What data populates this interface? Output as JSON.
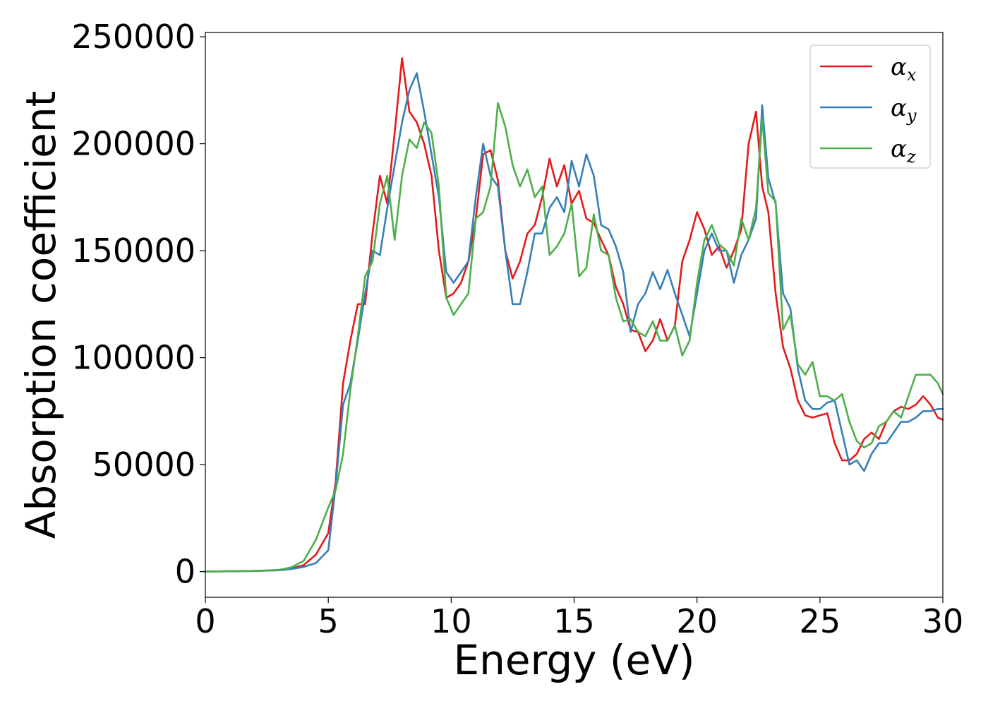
{
  "chart_data": {
    "type": "line",
    "title": "",
    "xlabel": "Energy (eV)",
    "ylabel": "Absorption coefficient",
    "xlim": [
      0,
      30
    ],
    "ylim": [
      -12000,
      252000
    ],
    "xticks": [
      0,
      5,
      10,
      15,
      20,
      25,
      30
    ],
    "yticks": [
      0,
      50000,
      100000,
      150000,
      200000,
      250000
    ],
    "grid": false,
    "legend_position": "top-right",
    "x": [
      0,
      2,
      3,
      3.5,
      4,
      4.5,
      5,
      5.3,
      5.6,
      5.9,
      6.2,
      6.5,
      6.8,
      7.1,
      7.4,
      7.7,
      8.0,
      8.3,
      8.6,
      8.9,
      9.2,
      9.5,
      9.8,
      10.1,
      10.4,
      10.7,
      11.0,
      11.3,
      11.6,
      11.9,
      12.2,
      12.5,
      12.8,
      13.1,
      13.4,
      13.7,
      14.0,
      14.3,
      14.6,
      14.9,
      15.2,
      15.5,
      15.8,
      16.1,
      16.4,
      16.7,
      17.0,
      17.3,
      17.6,
      17.9,
      18.2,
      18.5,
      18.8,
      19.1,
      19.4,
      19.7,
      20.0,
      20.3,
      20.6,
      20.9,
      21.2,
      21.5,
      21.8,
      22.1,
      22.4,
      22.65,
      22.9,
      23.2,
      23.5,
      23.8,
      24.1,
      24.4,
      24.7,
      25.0,
      25.3,
      25.6,
      25.9,
      26.2,
      26.5,
      26.8,
      27.1,
      27.4,
      27.7,
      28.0,
      28.3,
      28.6,
      28.9,
      29.2,
      29.5,
      29.8,
      30.0
    ],
    "series": [
      {
        "name": "αx",
        "color": "#e41a1c",
        "values": [
          0,
          300,
          700,
          1500,
          3000,
          8000,
          18000,
          42000,
          88000,
          108000,
          125000,
          125000,
          158000,
          185000,
          172000,
          205000,
          240000,
          215000,
          210000,
          200000,
          185000,
          150000,
          128000,
          130000,
          135000,
          145000,
          165000,
          195000,
          197000,
          183000,
          150000,
          137000,
          145000,
          158000,
          162000,
          175000,
          193000,
          180000,
          190000,
          172000,
          178000,
          165000,
          163000,
          155000,
          148000,
          133000,
          125000,
          113000,
          112000,
          103000,
          108000,
          118000,
          108000,
          115000,
          145000,
          155000,
          168000,
          160000,
          148000,
          152000,
          142000,
          150000,
          160000,
          200000,
          215000,
          180000,
          168000,
          130000,
          105000,
          95000,
          80000,
          73000,
          72000,
          73000,
          74000,
          60000,
          52000,
          52000,
          55000,
          62000,
          65000,
          62000,
          70000,
          75000,
          77000,
          76000,
          78000,
          82000,
          78000,
          72000,
          71000
        ]
      },
      {
        "name": "αy",
        "color": "#377eb8",
        "values": [
          0,
          300,
          600,
          1200,
          2200,
          4000,
          10000,
          40000,
          78000,
          88000,
          108000,
          130000,
          150000,
          148000,
          170000,
          190000,
          210000,
          225000,
          233000,
          215000,
          195000,
          175000,
          140000,
          135000,
          140000,
          145000,
          175000,
          200000,
          185000,
          180000,
          150000,
          125000,
          125000,
          140000,
          158000,
          158000,
          170000,
          175000,
          168000,
          192000,
          180000,
          195000,
          185000,
          162000,
          160000,
          152000,
          140000,
          112000,
          125000,
          130000,
          140000,
          132000,
          141000,
          130000,
          120000,
          110000,
          130000,
          150000,
          158000,
          150000,
          150000,
          135000,
          148000,
          155000,
          165000,
          218000,
          184000,
          172000,
          130000,
          123000,
          95000,
          80000,
          76000,
          76000,
          79000,
          80000,
          65000,
          50000,
          52000,
          47000,
          55000,
          60000,
          60000,
          65000,
          70000,
          70000,
          72000,
          75000,
          75000,
          76000,
          76000
        ]
      },
      {
        "name": "αz",
        "color": "#4daf4a",
        "values": [
          0,
          300,
          800,
          2000,
          5000,
          15000,
          30000,
          38000,
          55000,
          85000,
          110000,
          138000,
          145000,
          172000,
          185000,
          155000,
          185000,
          202000,
          198000,
          210000,
          205000,
          180000,
          128000,
          120000,
          125000,
          130000,
          165000,
          168000,
          180000,
          219000,
          208000,
          190000,
          180000,
          188000,
          175000,
          180000,
          148000,
          152000,
          158000,
          172000,
          138000,
          142000,
          167000,
          150000,
          148000,
          128000,
          117000,
          118000,
          112000,
          110000,
          117000,
          108000,
          108000,
          115000,
          101000,
          108000,
          135000,
          155000,
          162000,
          153000,
          150000,
          143000,
          165000,
          155000,
          170000,
          212000,
          177000,
          173000,
          113000,
          120000,
          97000,
          92000,
          98000,
          82000,
          82000,
          80000,
          83000,
          70000,
          61000,
          58000,
          60000,
          68000,
          70000,
          75000,
          72000,
          82000,
          92000,
          92000,
          92000,
          88000,
          83000
        ]
      }
    ]
  }
}
